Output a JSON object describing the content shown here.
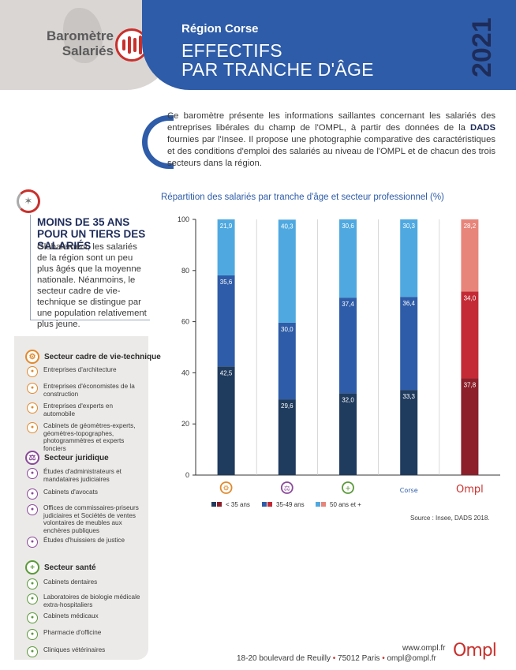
{
  "header": {
    "logo_line1": "Baromètre",
    "logo_line2": "Salariés",
    "region": "Région Corse",
    "title_line1": "EFFECTIFS",
    "title_line2": "PAR TRANCHE D'ÂGE",
    "year": "2021"
  },
  "intro": {
    "part1": "Ce baromètre présente les informations saillantes concernant les salariés des entreprises libérales du champ de l'OMPL, à partir des données de la ",
    "dads": "DADS",
    "part2": " fournies par l'Insee. Il propose une photographie comparative des caractéristiques et des conditions d'emploi des salariés au niveau de l'OMPL et de chacun des trois secteurs dans la région."
  },
  "highlight": {
    "title": "MOINS DE 35 ANS POUR UN TIERS DES SALARIÉS",
    "text": "Globalement, les salariés de la région sont un peu plus âgés que la moyenne nationale. Néanmoins, le secteur cadre de vie-technique se distingue par une population relativement plus jeune."
  },
  "legend": {
    "sectors": [
      {
        "name": "Secteur cadre de vie-technique",
        "color": "#e08a2e",
        "items": [
          "Entreprises d'architecture",
          "Entreprises d'économistes de la construction",
          "Entreprises d'experts en automobile",
          "Cabinets de géomètres-experts, géomètres-topographes, photogrammètres et experts fonciers"
        ]
      },
      {
        "name": "Secteur juridique",
        "color": "#8a4a9a",
        "items": [
          "Études d'administrateurs et mandataires judiciaires",
          "Cabinets d'avocats",
          "Offices de commissaires-priseurs judiciaires et Sociétés de ventes volontaires de meubles aux enchères publiques",
          "Études d'huissiers de justice"
        ]
      },
      {
        "name": "Secteur santé",
        "color": "#5a9a3a",
        "items": [
          "Cabinets dentaires",
          "Laboratoires de biologie médicale extra-hospitaliers",
          "Cabinets médicaux",
          "Pharmacie d'officine",
          "Cliniques vétérinaires"
        ]
      }
    ]
  },
  "chart_data": {
    "type": "bar",
    "stacked": true,
    "title": "Répartition des salariés par tranche d'âge et secteur professionnel (%)",
    "categories": [
      "cadre-de-vie-technique",
      "juridique",
      "santé",
      "Corse",
      "OMPL"
    ],
    "category_labels": [
      "",
      "",
      "",
      "Corse",
      "Ompl"
    ],
    "series": [
      {
        "name": "< 35 ans",
        "values": [
          42.5,
          29.6,
          32.0,
          33.3,
          37.8
        ],
        "labels": [
          "42,5",
          "29,6",
          "32,0",
          "33,3",
          "37,8"
        ]
      },
      {
        "name": "35-49 ans",
        "values": [
          35.6,
          30.0,
          37.4,
          36.4,
          34.0
        ],
        "labels": [
          "35,6",
          "30,0",
          "37,4",
          "36,4",
          "34,0"
        ]
      },
      {
        "name": "50 ans et +",
        "values": [
          21.9,
          40.3,
          30.6,
          30.3,
          28.2
        ],
        "labels": [
          "21,9",
          "40,3",
          "30,6",
          "30,3",
          "28,2"
        ]
      }
    ],
    "colors_default": [
      "#1f3b5e",
      "#2e5ca8",
      "#4fa9e0"
    ],
    "colors_ompl": [
      "#8c1f2a",
      "#c42a35",
      "#e8857a"
    ],
    "ylim": [
      0,
      100
    ],
    "yticks": [
      0,
      20,
      40,
      60,
      80,
      100
    ],
    "legend_position": "bottom"
  },
  "source": "Source : Insee, DADS 2018.",
  "footer": {
    "web": "www.ompl.fr",
    "address": "18-20 boulevard de Reuilly",
    "city": "75012 Paris",
    "email": "ompl@ompl.fr",
    "logo": "Ompl"
  }
}
